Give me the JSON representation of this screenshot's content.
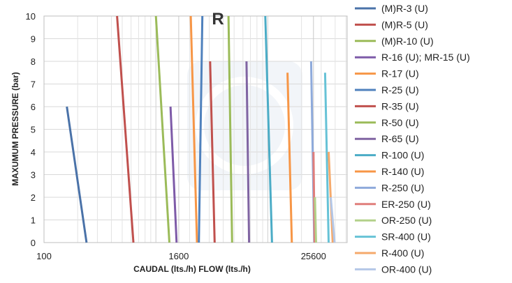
{
  "chart_data": {
    "type": "line",
    "title": "R",
    "xlabel": "CAUDAL (lts./h) FLOW (lts./h)",
    "ylabel": "MAXUMUM PRESSURE (bar)",
    "x_scale": "log4",
    "xlim": [
      100,
      51200
    ],
    "ylim": [
      0,
      10
    ],
    "x_ticks": [
      100,
      1600,
      25600
    ],
    "y_ticks": [
      0,
      1,
      2,
      3,
      4,
      5,
      6,
      7,
      8,
      9,
      10
    ],
    "grid": true,
    "legend_position": "right",
    "watermark": "logo",
    "series": [
      {
        "name": "(M)R-3 (U)",
        "color": "#4a72a8",
        "points": [
          [
            160,
            6
          ],
          [
            240,
            0
          ]
        ]
      },
      {
        "name": "(M)R-5 (U)",
        "color": "#c0504d",
        "points": [
          [
            450,
            10
          ],
          [
            630,
            0
          ]
        ]
      },
      {
        "name": "(M)R-10 (U)",
        "color": "#9bbb59",
        "points": [
          [
            1000,
            10
          ],
          [
            1320,
            0
          ]
        ]
      },
      {
        "name": "R-16 (U); MR-15 (U)",
        "color": "#7e5ba8",
        "points": [
          [
            1350,
            6
          ],
          [
            1530,
            0
          ]
        ]
      },
      {
        "name": "R-17 (U)",
        "color": "#f79646",
        "points": [
          [
            2050,
            10
          ],
          [
            2330,
            0
          ]
        ]
      },
      {
        "name": "R-25 (U)",
        "color": "#4f81bd",
        "points": [
          [
            2600,
            10
          ],
          [
            2420,
            0
          ]
        ]
      },
      {
        "name": "R-35 (U)",
        "color": "#c0504d",
        "points": [
          [
            3050,
            8
          ],
          [
            3350,
            0
          ]
        ]
      },
      {
        "name": "R-50 (U)",
        "color": "#9bbb59",
        "points": [
          [
            4450,
            10
          ],
          [
            4800,
            0
          ]
        ]
      },
      {
        "name": "R-65 (U)",
        "color": "#8064a2",
        "points": [
          [
            6450,
            8
          ],
          [
            6800,
            0
          ]
        ]
      },
      {
        "name": "R-100 (U)",
        "color": "#4bacc6",
        "points": [
          [
            9500,
            10
          ],
          [
            10900,
            0
          ]
        ]
      },
      {
        "name": "R-140 (U)",
        "color": "#f79646",
        "points": [
          [
            15000,
            7.5
          ],
          [
            16400,
            0
          ]
        ]
      },
      {
        "name": "R-250 (U)",
        "color": "#8eaadb",
        "points": [
          [
            24400,
            8
          ],
          [
            26000,
            0
          ]
        ]
      },
      {
        "name": "ER-250 (U)",
        "color": "#e07e7b",
        "points": [
          [
            25600,
            4
          ],
          [
            26200,
            0
          ]
        ]
      },
      {
        "name": "OR-250 (U)",
        "color": "#b3d18a",
        "points": [
          [
            26400,
            2
          ],
          [
            27000,
            0
          ]
        ]
      },
      {
        "name": "SR-400 (U)",
        "color": "#66c2d6",
        "points": [
          [
            32500,
            7.5
          ],
          [
            35000,
            0
          ]
        ]
      },
      {
        "name": "R-400 (U)",
        "color": "#f5a96b",
        "points": [
          [
            35000,
            4
          ],
          [
            38000,
            0
          ]
        ]
      },
      {
        "name": "OR-400 (U)",
        "color": "#b4c7e7",
        "points": [
          [
            36500,
            2
          ],
          [
            39500,
            0
          ]
        ]
      }
    ]
  }
}
